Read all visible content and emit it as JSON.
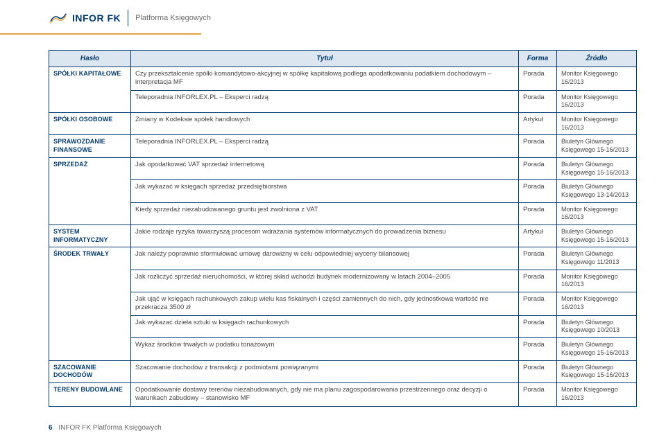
{
  "header": {
    "brand_main": "INFOR",
    "brand_fk": "FK",
    "subtitle": "Platforma Księgowych"
  },
  "colors": {
    "brand_navy": "#003a70",
    "header_row_bg": "#dbe6f1",
    "orange": "#e9a13b",
    "text": "#444444",
    "subtitle_grey": "#6a6a6a"
  },
  "table": {
    "headers": {
      "haslo": "Hasło",
      "tytul": "Tytuł",
      "forma": "Forma",
      "zrodlo": "Źródło"
    },
    "rows": [
      {
        "cat": "SPÓŁKI KAPITAŁOWE",
        "cat_rowspan": 2,
        "title": "Czy przekształcenie spółki komandytowo-akcyjnej w spółkę kapitałową podlega opodatkowaniu podatkiem dochodowym – interpretacja MF",
        "form": "Porada",
        "source": "Monitor Księgowego 16/2013"
      },
      {
        "title": "Teleporadnia INFORLEX.PL – Eksperci radzą",
        "form": "Porada",
        "source": "Monitor Księgowego 16/2013"
      },
      {
        "cat": "SPÓŁKI OSOBOWE",
        "title": "Zmiany w Kodeksie spółek handlowych",
        "form": "Artykuł",
        "source": "Monitor Księgowego 16/2013"
      },
      {
        "cat": "SPRAWOZDANIE FINANSOWE",
        "title": "Teleporadnia INFORLEX.PL – Eksperci radzą",
        "form": "Porada",
        "source": "Biuletyn Głównego Księgowego 15-16/2013"
      },
      {
        "cat": "SPRZEDAŻ",
        "cat_rowspan": 3,
        "title": "Jak opodatkować VAT sprzedaż internetową",
        "form": "Porada",
        "source": "Biuletyn Głównego Księgowego 15-16/2013"
      },
      {
        "title": "Jak wykazać w księgach sprzedaż przedsiębiorstwa",
        "form": "Porada",
        "source": "Biuletyn Głównego Księgowego 13-14/2013"
      },
      {
        "title": "Kiedy sprzedaż niezabudowanego gruntu jest zwolniona z VAT",
        "form": "Porada",
        "source": "Monitor Księgowego 16/2013"
      },
      {
        "cat": "SYSTEM INFORMATYCZNY",
        "title": "Jakie rodzaje ryzyka towarzyszą procesom wdrażania systemów informatycznych do prowadzenia biznesu",
        "form": "Artykuł",
        "source": "Biuletyn Głównego Księgowego 15-16/2013"
      },
      {
        "cat": "ŚRODEK TRWAŁY",
        "cat_rowspan": 5,
        "title": "Jak należy poprawnie sformułować umowę darowizny w celu odpowiedniej wyceny bilansowej",
        "form": "Porada",
        "source": "Biuletyn Głównego Księgowego 11/2013"
      },
      {
        "title": "Jak rozliczyć sprzedaż nieruchomości, w której skład wchodzi budynek modernizowany w latach 2004–2005",
        "form": "Porada",
        "source": "Monitor Księgowego 16/2013"
      },
      {
        "title": "Jak ująć w księgach rachunkowych zakup wielu kas fiskalnych i części zamiennych do nich, gdy jednostkowa wartość nie przekracza 3500 zł",
        "form": "Porada",
        "source": "Monitor Księgowego 16/2013"
      },
      {
        "title": "Jak wykazać dzieła sztuki w księgach rachunkowych",
        "form": "Porada",
        "source": "Biuletyn Głównego Księgowego 10/2013"
      },
      {
        "title": "Wykaz środków trwałych w podatku tonażowym",
        "form": "Porada",
        "source": "Biuletyn Głównego Księgowego 15-16/2013"
      },
      {
        "cat": "SZACOWANIE DOCHODÓW",
        "title": "Szacowanie dochodów z transakcji z podmiotami powiązanymi",
        "form": "Porada",
        "source": "Biuletyn Głównego Księgowego 15-16/2013"
      },
      {
        "cat": "TERENY BUDOWLANE",
        "title": "Opodatkowanie dostawy terenów niezabudowanych, gdy nie ma planu zagospodarowania przestrzennego oraz decyzji o warunkach zabudowy – stanowisko MF",
        "form": "Porada",
        "source": "Monitor Księgowego 16/2013"
      }
    ]
  },
  "footer": {
    "page_number": "6",
    "footer_text": "INFOR FK Platforma Księgowych"
  }
}
